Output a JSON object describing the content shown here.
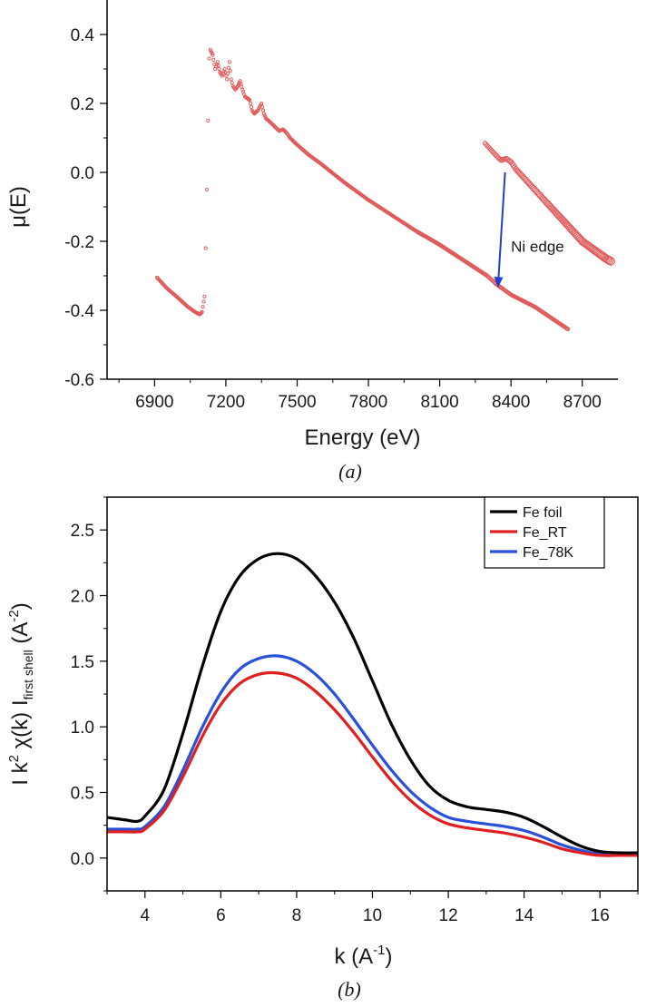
{
  "chart_data": [
    {
      "type": "scatter",
      "panel_label": "(a)",
      "xlabel": "Energy  (eV)",
      "ylabel": "μ(E)",
      "xlim": [
        6700,
        8850
      ],
      "ylim": [
        -0.6,
        0.5
      ],
      "xticks": [
        6900,
        7200,
        7500,
        7800,
        8100,
        8400,
        8700
      ],
      "yticks": [
        -0.6,
        -0.4,
        -0.2,
        0.0,
        0.2,
        0.4
      ],
      "ytick_labels": [
        "-0.6",
        "-0.4",
        "-0.2",
        "0.0",
        "0.2",
        "0.4"
      ],
      "grid": false,
      "colors": {
        "marker": "#e05a5a",
        "arrow": "#2040d0"
      },
      "series": [
        {
          "x": [
            6910,
            6950,
            7000,
            7040,
            7070,
            7090,
            7100,
            7110,
            7115,
            7120,
            7125,
            7130,
            7135,
            7145,
            7155,
            7165,
            7175,
            7185,
            7195,
            7205,
            7215,
            7222,
            7230,
            7240,
            7250,
            7260,
            7270,
            7280,
            7290,
            7300,
            7310,
            7320,
            7335,
            7350,
            7360,
            7370,
            7380,
            7395,
            7410,
            7425,
            7440,
            7455,
            7470,
            7500,
            7550,
            7600,
            7700,
            7800,
            7900,
            8000,
            8100,
            8200,
            8300,
            8340,
            8350,
            8360,
            8400,
            8500,
            8640
          ],
          "y": [
            -0.305,
            -0.335,
            -0.365,
            -0.39,
            -0.405,
            -0.412,
            -0.405,
            -0.36,
            -0.22,
            -0.05,
            0.15,
            0.33,
            0.355,
            0.34,
            0.3,
            0.32,
            0.29,
            0.28,
            0.3,
            0.27,
            0.32,
            0.27,
            0.25,
            0.24,
            0.25,
            0.265,
            0.24,
            0.22,
            0.215,
            0.21,
            0.18,
            0.17,
            0.18,
            0.2,
            0.17,
            0.155,
            0.15,
            0.14,
            0.13,
            0.12,
            0.125,
            0.115,
            0.1,
            0.08,
            0.05,
            0.025,
            -0.03,
            -0.08,
            -0.125,
            -0.17,
            -0.21,
            -0.255,
            -0.3,
            -0.325,
            -0.33,
            -0.335,
            -0.355,
            -0.39,
            -0.455
          ]
        },
        {
          "x": [
            8290,
            8310,
            8330,
            8350,
            8360,
            8370,
            8380,
            8390,
            8400,
            8410,
            8420,
            8440,
            8460,
            8480,
            8500,
            8520,
            8540,
            8560,
            8580,
            8600,
            8620,
            8640,
            8660,
            8680,
            8700,
            8720,
            8740,
            8760,
            8780,
            8800,
            8820
          ],
          "y": [
            0.085,
            0.07,
            0.055,
            0.04,
            0.035,
            0.038,
            0.04,
            0.035,
            0.03,
            0.02,
            0.01,
            -0.005,
            -0.02,
            -0.035,
            -0.05,
            -0.065,
            -0.08,
            -0.095,
            -0.11,
            -0.125,
            -0.14,
            -0.155,
            -0.17,
            -0.185,
            -0.2,
            -0.21,
            -0.22,
            -0.23,
            -0.24,
            -0.25,
            -0.258
          ]
        }
      ],
      "annotation": {
        "text": "Ni edge",
        "arrow_from": [
          8375,
          0.0
        ],
        "arrow_to": [
          8345,
          -0.335
        ]
      }
    },
    {
      "type": "line",
      "panel_label": "(b)",
      "xlabel_main": "k  (A",
      "xlabel_sup": "-1",
      "xlabel_end": ")",
      "ylabel_parts": {
        "p1": "I k",
        "sup1": "2",
        "p2": " χ(k) I",
        "sub": "first shell",
        "p3": "  (A",
        "sup2": "-2",
        "p4": ")"
      },
      "xlim": [
        3,
        17
      ],
      "ylim": [
        -0.25,
        2.75
      ],
      "xticks": [
        4,
        6,
        8,
        10,
        12,
        14,
        16
      ],
      "yticks": [
        0.0,
        0.5,
        1.0,
        1.5,
        2.0,
        2.5
      ],
      "ytick_labels": [
        "0.0",
        "0.5",
        "1.0",
        "1.5",
        "2.0",
        "2.5"
      ],
      "grid": false,
      "legend_position": "top-right",
      "x": [
        3,
        3.5,
        3.8,
        4,
        4.5,
        5,
        5.5,
        6,
        6.5,
        7,
        7.5,
        8,
        8.5,
        9,
        9.5,
        10,
        10.5,
        11,
        11.5,
        12,
        12.5,
        13,
        13.5,
        14,
        14.5,
        15,
        15.5,
        16,
        16.5,
        17
      ],
      "series": [
        {
          "name": "Fe foil",
          "color": "#000000",
          "values": [
            0.31,
            0.29,
            0.28,
            0.32,
            0.52,
            0.95,
            1.45,
            1.88,
            2.15,
            2.28,
            2.32,
            2.28,
            2.15,
            1.95,
            1.68,
            1.35,
            1.02,
            0.75,
            0.55,
            0.44,
            0.39,
            0.37,
            0.35,
            0.31,
            0.24,
            0.16,
            0.09,
            0.05,
            0.04,
            0.04
          ]
        },
        {
          "name": "Fe_RT",
          "color": "#e02020",
          "values": [
            0.2,
            0.2,
            0.2,
            0.22,
            0.36,
            0.62,
            0.92,
            1.17,
            1.33,
            1.4,
            1.41,
            1.37,
            1.27,
            1.13,
            0.96,
            0.77,
            0.59,
            0.44,
            0.33,
            0.26,
            0.23,
            0.21,
            0.19,
            0.16,
            0.12,
            0.07,
            0.04,
            0.02,
            0.02,
            0.02
          ]
        },
        {
          "name": "Fe_78K",
          "color": "#2850d8",
          "values": [
            0.22,
            0.22,
            0.22,
            0.24,
            0.39,
            0.67,
            0.99,
            1.26,
            1.44,
            1.52,
            1.54,
            1.5,
            1.4,
            1.25,
            1.06,
            0.86,
            0.67,
            0.51,
            0.39,
            0.31,
            0.28,
            0.26,
            0.24,
            0.21,
            0.16,
            0.1,
            0.06,
            0.03,
            0.03,
            0.03
          ]
        }
      ]
    }
  ]
}
